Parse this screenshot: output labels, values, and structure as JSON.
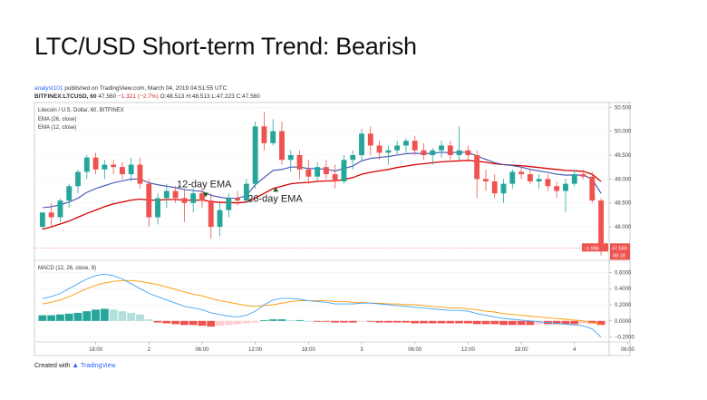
{
  "page": {
    "title": "LTC/USD Short-term Trend: Bearish",
    "publisher_line": {
      "author": "analyst101",
      "text": "published on TradingView.com, March 04, 2019 04:51:55 UTC"
    },
    "symbol_line": {
      "symbol": "BITFINEX:LTCUSD, 60",
      "last": "47.560",
      "change": "−1.321 (−2.7%)",
      "open": "O:48.513",
      "high": "H:48.513",
      "low": "L:47.223",
      "close": "C:47.560"
    },
    "credit": {
      "prefix": "Created with",
      "brand": "TradingView"
    }
  },
  "chart_data": [
    {
      "type": "candlestick",
      "title": "Litecoin / U.S. Dollar, 60, BITFINEX",
      "indicators": [
        "EMA (26, close)",
        "EMA (12, close)"
      ],
      "ylim": [
        47.3,
        50.6
      ],
      "yticks": [
        "50.500",
        "50.000",
        "49.500",
        "49.000",
        "48.500",
        "48.000"
      ],
      "xticks": [
        {
          "label": "18:00",
          "index": 6
        },
        {
          "label": "2",
          "index": 12
        },
        {
          "label": "06:00",
          "index": 18
        },
        {
          "label": "12:00",
          "index": 24
        },
        {
          "label": "18:00",
          "index": 30
        },
        {
          "label": "3",
          "index": 36
        },
        {
          "label": "06:00",
          "index": 42
        },
        {
          "label": "12:00",
          "index": 48
        },
        {
          "label": "18:00",
          "index": 54
        },
        {
          "label": "4",
          "index": 60
        },
        {
          "label": "06:00",
          "index": 66
        }
      ],
      "candles": [
        [
          48.0,
          48.3,
          47.95,
          48.3
        ],
        [
          48.3,
          48.5,
          48.0,
          48.2
        ],
        [
          48.2,
          48.6,
          48.1,
          48.55
        ],
        [
          48.55,
          48.9,
          48.4,
          48.85
        ],
        [
          48.85,
          49.2,
          48.7,
          49.15
        ],
        [
          49.15,
          49.5,
          49.0,
          49.45
        ],
        [
          49.45,
          49.55,
          49.1,
          49.2
        ],
        [
          49.2,
          49.4,
          49.0,
          49.3
        ],
        [
          49.3,
          49.4,
          49.1,
          49.25
        ],
        [
          49.25,
          49.35,
          49.0,
          49.1
        ],
        [
          49.1,
          49.45,
          48.95,
          49.3
        ],
        [
          49.3,
          49.45,
          48.8,
          48.9
        ],
        [
          48.9,
          49.0,
          48.0,
          48.2
        ],
        [
          48.2,
          48.7,
          48.05,
          48.6
        ],
        [
          48.6,
          48.9,
          48.4,
          48.75
        ],
        [
          48.75,
          48.85,
          48.5,
          48.6
        ],
        [
          48.6,
          48.8,
          48.1,
          48.5
        ],
        [
          48.5,
          48.8,
          48.3,
          48.7
        ],
        [
          48.7,
          48.8,
          48.4,
          48.55
        ],
        [
          48.55,
          48.7,
          47.75,
          48.0
        ],
        [
          48.0,
          48.5,
          47.8,
          48.35
        ],
        [
          48.35,
          48.7,
          48.2,
          48.6
        ],
        [
          48.6,
          48.75,
          48.45,
          48.55
        ],
        [
          48.55,
          49.0,
          48.5,
          48.9
        ],
        [
          48.9,
          50.2,
          48.8,
          50.1
        ],
        [
          50.1,
          50.4,
          49.6,
          49.75
        ],
        [
          49.75,
          50.25,
          49.7,
          50.0
        ],
        [
          50.0,
          50.2,
          49.3,
          49.4
        ],
        [
          49.4,
          49.6,
          49.15,
          49.5
        ],
        [
          49.5,
          49.6,
          49.0,
          49.2
        ],
        [
          49.2,
          49.4,
          48.9,
          49.05
        ],
        [
          49.05,
          49.35,
          48.95,
          49.25
        ],
        [
          49.25,
          49.4,
          49.0,
          49.1
        ],
        [
          49.1,
          49.3,
          48.8,
          48.95
        ],
        [
          48.95,
          49.5,
          48.9,
          49.4
        ],
        [
          49.4,
          49.6,
          49.2,
          49.5
        ],
        [
          49.5,
          50.05,
          49.4,
          49.95
        ],
        [
          49.95,
          50.1,
          49.5,
          49.7
        ],
        [
          49.7,
          49.8,
          49.4,
          49.55
        ],
        [
          49.55,
          49.7,
          49.3,
          49.6
        ],
        [
          49.6,
          49.8,
          49.5,
          49.7
        ],
        [
          49.7,
          49.85,
          49.55,
          49.8
        ],
        [
          49.8,
          49.9,
          49.5,
          49.6
        ],
        [
          49.6,
          49.75,
          49.4,
          49.5
        ],
        [
          49.5,
          49.65,
          49.3,
          49.6
        ],
        [
          49.6,
          49.8,
          49.45,
          49.7
        ],
        [
          49.7,
          49.8,
          49.4,
          49.5
        ],
        [
          49.5,
          50.1,
          49.4,
          49.6
        ],
        [
          49.6,
          49.7,
          49.4,
          49.5
        ],
        [
          49.5,
          49.6,
          48.6,
          49.0
        ],
        [
          49.0,
          49.2,
          48.75,
          48.95
        ],
        [
          48.95,
          49.1,
          48.6,
          48.7
        ],
        [
          48.7,
          49.0,
          48.5,
          48.9
        ],
        [
          48.9,
          49.2,
          48.8,
          49.15
        ],
        [
          49.15,
          49.3,
          49.0,
          49.1
        ],
        [
          49.1,
          49.2,
          48.9,
          48.95
        ],
        [
          48.95,
          49.1,
          48.8,
          49.0
        ],
        [
          49.0,
          49.1,
          48.75,
          48.85
        ],
        [
          48.85,
          48.95,
          48.6,
          48.75
        ],
        [
          48.75,
          49.0,
          48.3,
          48.9
        ],
        [
          48.9,
          49.2,
          48.85,
          49.1
        ],
        [
          49.1,
          49.2,
          49.0,
          49.05
        ],
        [
          49.05,
          49.15,
          48.5,
          48.55
        ],
        [
          48.55,
          48.6,
          47.4,
          47.56
        ]
      ],
      "ema12": [
        48.4,
        48.42,
        48.46,
        48.52,
        48.6,
        48.72,
        48.8,
        48.86,
        48.92,
        48.96,
        49.0,
        49.0,
        48.92,
        48.88,
        48.85,
        48.82,
        48.78,
        48.76,
        48.74,
        48.66,
        48.62,
        48.6,
        48.6,
        48.65,
        48.88,
        49.03,
        49.18,
        49.2,
        49.25,
        49.25,
        49.22,
        49.22,
        49.2,
        49.17,
        49.22,
        49.27,
        49.38,
        49.43,
        49.45,
        49.47,
        49.5,
        49.53,
        49.54,
        49.53,
        49.54,
        49.56,
        49.55,
        49.56,
        49.56,
        49.48,
        49.41,
        49.34,
        49.3,
        49.28,
        49.25,
        49.2,
        49.17,
        49.14,
        49.1,
        49.08,
        49.08,
        49.08,
        49.0,
        48.7
      ],
      "ema26": [
        47.95,
        48.0,
        48.06,
        48.12,
        48.2,
        48.28,
        48.35,
        48.42,
        48.48,
        48.52,
        48.56,
        48.58,
        48.56,
        48.56,
        48.57,
        48.57,
        48.56,
        48.56,
        48.56,
        48.53,
        48.51,
        48.51,
        48.5,
        48.52,
        48.6,
        48.7,
        48.8,
        48.85,
        48.9,
        48.92,
        48.93,
        48.95,
        48.96,
        48.96,
        48.99,
        49.03,
        49.1,
        49.14,
        49.17,
        49.2,
        49.24,
        49.27,
        49.3,
        49.32,
        49.34,
        49.36,
        49.37,
        49.38,
        49.39,
        49.37,
        49.35,
        49.32,
        49.3,
        49.29,
        49.28,
        49.26,
        49.24,
        49.22,
        49.2,
        49.18,
        49.17,
        49.16,
        49.1,
        48.95
      ],
      "last_price_label": "47.560",
      "last_change_label": "−1.986",
      "countdown_label": "08:18",
      "annotations": [
        {
          "text": "12-day EMA",
          "index": 18,
          "price": 48.75
        },
        {
          "text": "26-day EMA",
          "index": 26,
          "price": 48.45
        }
      ]
    },
    {
      "type": "macd",
      "title": "MACD (12, 26, close, 9)",
      "ylim": [
        -0.26,
        0.75
      ],
      "yticks": [
        "0.6000",
        "0.4000",
        "0.2000",
        "0.0000",
        "−0.2000"
      ],
      "histogram": [
        0.07,
        0.07,
        0.08,
        0.09,
        0.1,
        0.12,
        0.14,
        0.15,
        0.14,
        0.12,
        0.1,
        0.08,
        0.02,
        -0.02,
        -0.03,
        -0.04,
        -0.05,
        -0.05,
        -0.06,
        -0.07,
        -0.06,
        -0.05,
        -0.04,
        -0.03,
        -0.02,
        0.01,
        0.02,
        0.02,
        0.01,
        0.01,
        0.0,
        -0.01,
        -0.01,
        -0.02,
        -0.02,
        -0.02,
        -0.01,
        -0.01,
        -0.02,
        -0.02,
        -0.02,
        -0.02,
        -0.03,
        -0.03,
        -0.03,
        -0.03,
        -0.03,
        -0.03,
        -0.03,
        -0.04,
        -0.04,
        -0.04,
        -0.05,
        -0.05,
        -0.05,
        -0.05,
        -0.04,
        -0.04,
        -0.04,
        -0.04,
        -0.04,
        -0.03,
        -0.03,
        -0.05
      ],
      "macd": [
        0.28,
        0.3,
        0.34,
        0.4,
        0.46,
        0.52,
        0.56,
        0.58,
        0.56,
        0.52,
        0.46,
        0.4,
        0.34,
        0.3,
        0.26,
        0.22,
        0.18,
        0.16,
        0.14,
        0.1,
        0.08,
        0.06,
        0.05,
        0.07,
        0.12,
        0.2,
        0.26,
        0.28,
        0.28,
        0.27,
        0.25,
        0.24,
        0.23,
        0.21,
        0.21,
        0.21,
        0.22,
        0.22,
        0.21,
        0.2,
        0.19,
        0.18,
        0.17,
        0.16,
        0.15,
        0.14,
        0.13,
        0.13,
        0.12,
        0.09,
        0.07,
        0.05,
        0.03,
        0.02,
        0.01,
        0.0,
        -0.01,
        -0.02,
        -0.03,
        -0.04,
        -0.05,
        -0.06,
        -0.1,
        -0.2
      ],
      "signal": [
        0.21,
        0.23,
        0.26,
        0.3,
        0.35,
        0.4,
        0.44,
        0.47,
        0.49,
        0.5,
        0.5,
        0.49,
        0.47,
        0.45,
        0.42,
        0.39,
        0.36,
        0.33,
        0.31,
        0.28,
        0.25,
        0.23,
        0.21,
        0.19,
        0.18,
        0.19,
        0.2,
        0.22,
        0.24,
        0.25,
        0.25,
        0.25,
        0.25,
        0.24,
        0.24,
        0.23,
        0.23,
        0.22,
        0.22,
        0.21,
        0.21,
        0.2,
        0.2,
        0.19,
        0.18,
        0.17,
        0.16,
        0.16,
        0.15,
        0.14,
        0.12,
        0.11,
        0.09,
        0.08,
        0.07,
        0.06,
        0.05,
        0.04,
        0.03,
        0.02,
        0.01,
        0.0,
        -0.02,
        -0.04
      ]
    }
  ],
  "colors": {
    "up": "#26a69a",
    "down": "#ef5350",
    "ema12": "#d50000",
    "ema26": "#3f51b5",
    "macd": "#42a5f5",
    "signal": "#ff9800",
    "hist_up_strong": "#26a69a",
    "hist_up_weak": "#b2dfdb",
    "hist_down_strong": "#ef5350",
    "hist_down_weak": "#ffcdd2",
    "annotation_arrow": "#1b5e20"
  }
}
